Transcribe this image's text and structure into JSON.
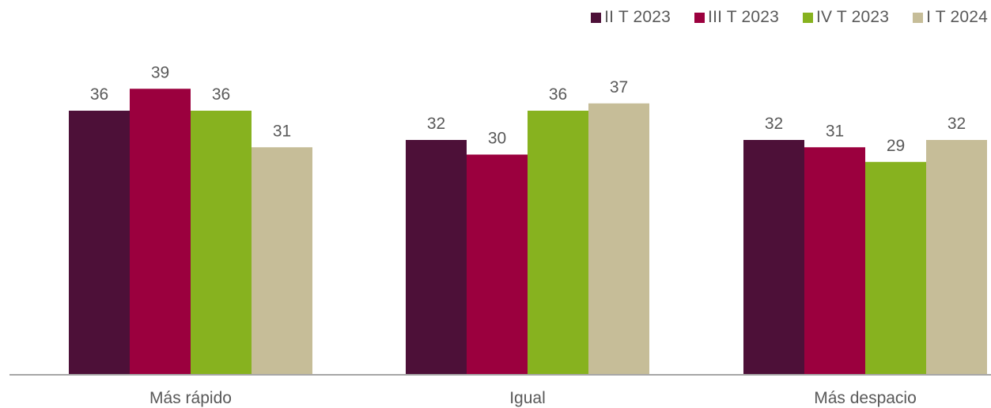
{
  "chart_data": {
    "type": "bar",
    "categories": [
      "Más rápido",
      "Igual",
      "Más despacio"
    ],
    "series": [
      {
        "name": "II T 2023",
        "color": "#4d1038",
        "values": [
          36,
          32,
          32
        ]
      },
      {
        "name": "III T 2023",
        "color": "#9b003e",
        "values": [
          39,
          30,
          31
        ]
      },
      {
        "name": "IV T 2023",
        "color": "#87b21f",
        "values": [
          36,
          36,
          29
        ]
      },
      {
        "name": "I T 2024",
        "color": "#c6bd98",
        "values": [
          31,
          37,
          32
        ]
      }
    ],
    "legend_position": "top-right",
    "grid": false,
    "ylim": [
      0,
      45
    ]
  }
}
